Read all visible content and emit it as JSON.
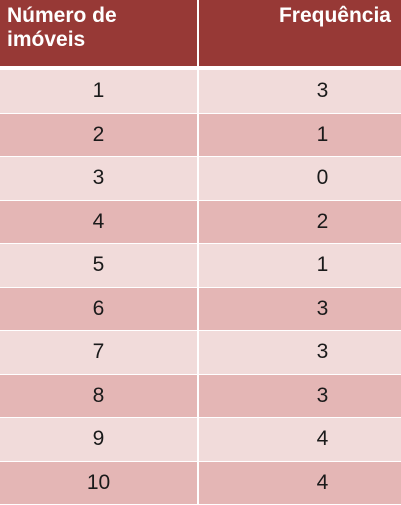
{
  "table": {
    "headers": [
      "Número de imóveis",
      "Frequência"
    ],
    "rows": [
      {
        "imoveis": "1",
        "frequencia": "3"
      },
      {
        "imoveis": "2",
        "frequencia": "1"
      },
      {
        "imoveis": "3",
        "frequencia": "0"
      },
      {
        "imoveis": "4",
        "frequencia": "2"
      },
      {
        "imoveis": "5",
        "frequencia": "1"
      },
      {
        "imoveis": "6",
        "frequencia": "3"
      },
      {
        "imoveis": "7",
        "frequencia": "3"
      },
      {
        "imoveis": "8",
        "frequencia": "3"
      },
      {
        "imoveis": "9",
        "frequencia": "4"
      },
      {
        "imoveis": "10",
        "frequencia": "4"
      }
    ]
  },
  "colors": {
    "header_bg": "#973936",
    "row_light": "#f1dbda",
    "row_dark": "#e4b6b5"
  }
}
